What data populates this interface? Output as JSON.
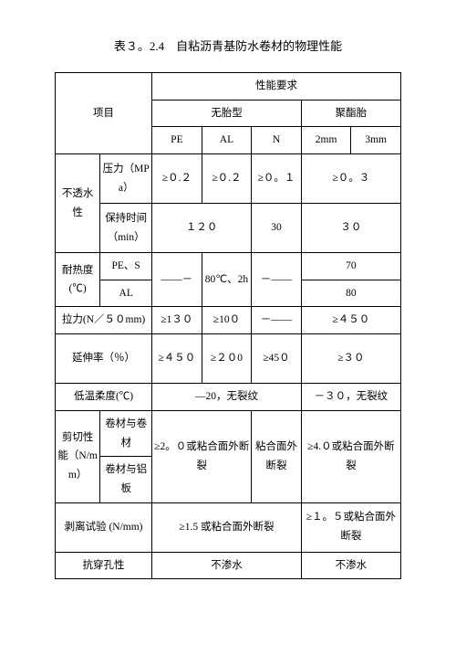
{
  "title": "表３。2.4　自粘沥青基防水卷材的物理性能",
  "header": {
    "item": "项目",
    "req": "性能要求",
    "noTire": "无胎型",
    "polyTire": "聚酯胎",
    "pe": "PE",
    "al": "AL",
    "n": "N",
    "mm2": "2mm",
    "mm3": "3mm"
  },
  "rows": {
    "imperm": "不透水性",
    "pressure": "压力（MPa）",
    "p_pe": "≥０.２",
    "p_al": "≥０.２",
    "p_n": "≥０。１",
    "p_poly": "≥０。３",
    "holdTime": "保持时间（min）",
    "ht_noTire": "１２０",
    "ht_n": "30",
    "ht_poly": "３０",
    "heat": "耐热度(℃)",
    "heat_sub1": "PE、S",
    "heat_sub2": "AL",
    "heat_dash1": "——－",
    "heat_cond": "80℃、2h",
    "heat_dash2": "－——",
    "heat_v1": "70",
    "heat_v2": "80",
    "tensile": "拉力(N／５０mm)",
    "t_pe": "≥1３０",
    "t_al": "≥10０",
    "t_n": "－——",
    "t_poly": "≥４５０",
    "elong": "延伸率（％）",
    "e_pe": "≥４５０",
    "e_al": "≥２０0",
    "e_n": "≥45０",
    "e_poly": "≥３０",
    "lowTemp": "低温柔度(℃)",
    "lt_noTire": "—20，无裂纹",
    "lt_poly": "－３０，无裂纹",
    "shear": "剪切性能（N/mm）",
    "shear_sub1": "卷材与卷材",
    "shear_sub2": "卷材与铝板",
    "shear_noTire": "≥2。０或粘合面外断裂",
    "shear_n": "粘合面外断裂",
    "shear_poly": "≥4.０或粘合面外断裂",
    "peel": "剥离试验 (N/mm)",
    "peel_noTire": "≥1.5 或粘合面外断裂",
    "peel_poly": "≥１。５或粘合面外断裂",
    "puncture": "抗穿孔性",
    "punc_noTire": "不渗水",
    "punc_poly": "不渗水"
  }
}
